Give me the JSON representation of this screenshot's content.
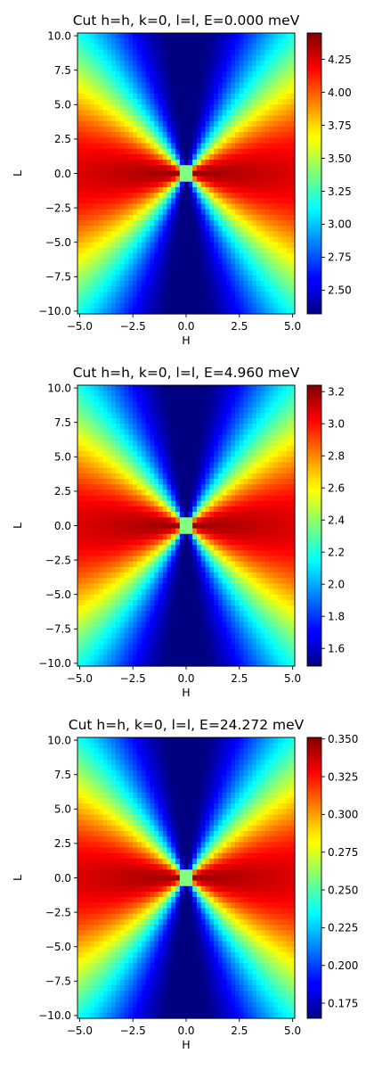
{
  "chart_data": [
    {
      "type": "heatmap",
      "title": "Cut h=h, k=0, l=l, E=0.000 meV",
      "xlabel": "H",
      "ylabel": "L",
      "xlim": [
        -5.1,
        5.1
      ],
      "ylim": [
        -10.2,
        10.2
      ],
      "xticks": [
        -5.0,
        -2.5,
        0.0,
        2.5,
        5.0
      ],
      "xtick_labels": [
        "−5.0",
        "−2.5",
        "0.0",
        "2.5",
        "5.0"
      ],
      "yticks": [
        -10.0,
        -7.5,
        -5.0,
        -2.5,
        0.0,
        2.5,
        5.0,
        7.5,
        10.0
      ],
      "ytick_labels": [
        "−10.0",
        "−7.5",
        "−5.0",
        "−2.5",
        "0.0",
        "2.5",
        "5.0",
        "7.5",
        "10.0"
      ],
      "colormap": "jet",
      "cmin": 2.32,
      "cmax": 4.45,
      "cticks": [
        2.5,
        2.75,
        3.0,
        3.25,
        3.5,
        3.75,
        4.0,
        4.25
      ],
      "ctick_labels": [
        "2.50",
        "2.75",
        "3.00",
        "3.25",
        "3.50",
        "3.75",
        "4.00",
        "4.25"
      ],
      "center_value": 3.25
    },
    {
      "type": "heatmap",
      "title": "Cut h=h, k=0, l=l, E=4.960 meV",
      "xlabel": "H",
      "ylabel": "L",
      "xlim": [
        -5.1,
        5.1
      ],
      "ylim": [
        -10.2,
        10.2
      ],
      "xticks": [
        -5.0,
        -2.5,
        0.0,
        2.5,
        5.0
      ],
      "xtick_labels": [
        "−5.0",
        "−2.5",
        "0.0",
        "2.5",
        "5.0"
      ],
      "yticks": [
        -10.0,
        -7.5,
        -5.0,
        -2.5,
        0.0,
        2.5,
        5.0,
        7.5,
        10.0
      ],
      "ytick_labels": [
        "−10.0",
        "−7.5",
        "−5.0",
        "−2.5",
        "0.0",
        "2.5",
        "5.0",
        "7.5",
        "10.0"
      ],
      "colormap": "jet",
      "cmin": 1.49,
      "cmax": 3.24,
      "cticks": [
        1.6,
        1.8,
        2.0,
        2.2,
        2.4,
        2.6,
        2.8,
        3.0,
        3.2
      ],
      "ctick_labels": [
        "1.6",
        "1.8",
        "2.0",
        "2.2",
        "2.4",
        "2.6",
        "2.8",
        "3.0",
        "3.2"
      ],
      "center_value": 2.35
    },
    {
      "type": "heatmap",
      "title": "Cut h=h, k=0, l=l, E=24.272 meV",
      "xlabel": "H",
      "ylabel": "L",
      "xlim": [
        -5.1,
        5.1
      ],
      "ylim": [
        -10.2,
        10.2
      ],
      "xticks": [
        -5.0,
        -2.5,
        0.0,
        2.5,
        5.0
      ],
      "xtick_labels": [
        "−5.0",
        "−2.5",
        "0.0",
        "2.5",
        "5.0"
      ],
      "yticks": [
        -10.0,
        -7.5,
        -5.0,
        -2.5,
        0.0,
        2.5,
        5.0,
        7.5,
        10.0
      ],
      "ytick_labels": [
        "−10.0",
        "−7.5",
        "−5.0",
        "−2.5",
        "0.0",
        "2.5",
        "5.0",
        "7.5",
        "10.0"
      ],
      "colormap": "jet",
      "cmin": 0.165,
      "cmax": 0.351,
      "cticks": [
        0.175,
        0.2,
        0.225,
        0.25,
        0.275,
        0.3,
        0.325,
        0.35
      ],
      "ctick_labels": [
        "0.175",
        "0.200",
        "0.225",
        "0.250",
        "0.275",
        "0.300",
        "0.325",
        "0.350"
      ],
      "center_value": 0.255
    }
  ]
}
